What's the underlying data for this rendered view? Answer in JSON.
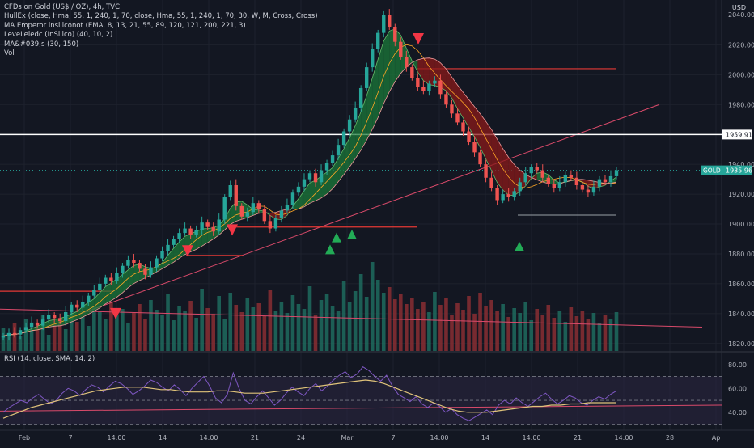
{
  "header": {
    "title": "CFDs on Gold (US$ / OZ), 4h, TVC",
    "indicators": [
      "HullEx (close, Hma, 55, 1, 240, 1, 70, close, Hma, 55, 1, 240, 1, 70, 30, W, M, Cross, Cross)",
      "MA Emperor insiliconot (EMA, 8, 13, 21, 55, 89, 120, 121, 200, 221, 3)",
      "LeveLeledc (InSilico) (40, 10, 2)",
      "MA&#039;s (30, 150)",
      "Vol"
    ],
    "currency": "USD"
  },
  "rsi_legend": "RSI (14, close, SMA, 14, 2)",
  "price_tags": {
    "level": "1959.91",
    "symbol": "GOLD",
    "last": "1935.96",
    "top_partial": "2040.00"
  },
  "colors": {
    "background": "#131722",
    "up": "#26a69a",
    "down": "#ef5350",
    "ribbon_green": "#1b7a3a",
    "ribbon_red": "#8b1a1a",
    "trendline": "#d94a6a",
    "level_line": "#ffffff",
    "rsi_line": "#7e57c2",
    "rsi_ma": "#e0c37a",
    "rsi_band": "#2a2440",
    "signal_down": "#f23645",
    "signal_up": "#22ab56"
  },
  "chart_data": [
    {
      "type": "candlestick",
      "y_axis_labels": [
        "2020.00",
        "2000.00",
        "1980.00",
        "1940.00",
        "1920.00",
        "1900.00",
        "1880.00",
        "1860.00",
        "1840.00",
        "1820.00"
      ],
      "x_axis_labels": [
        "Feb",
        "7",
        "14:00",
        "14",
        "14:00",
        "21",
        "24",
        "Mar",
        "7",
        "14:00",
        "14",
        "14:00",
        "21",
        "14:00",
        "28",
        "Ap"
      ],
      "ylim": [
        1815,
        2050
      ],
      "horizontal_levels": [
        1959.91,
        2002,
        1936
      ],
      "last_price": 1935.96,
      "close_series": [
        1825,
        1827,
        1826,
        1829,
        1831,
        1834,
        1832,
        1836,
        1839,
        1837,
        1835,
        1841,
        1846,
        1844,
        1848,
        1852,
        1856,
        1860,
        1864,
        1862,
        1867,
        1872,
        1876,
        1874,
        1870,
        1866,
        1871,
        1877,
        1882,
        1886,
        1890,
        1894,
        1897,
        1893,
        1896,
        1901,
        1898,
        1895,
        1903,
        1918,
        1926,
        1912,
        1905,
        1908,
        1914,
        1910,
        1902,
        1897,
        1904,
        1909,
        1913,
        1921,
        1925,
        1930,
        1934,
        1928,
        1936,
        1941,
        1946,
        1953,
        1962,
        1970,
        1978,
        1991,
        2005,
        2017,
        2028,
        2040,
        2032,
        2022,
        2012,
        2005,
        1998,
        1992,
        1989,
        1994,
        1996,
        1987,
        1980,
        1974,
        1968,
        1962,
        1955,
        1948,
        1940,
        1931,
        1924,
        1916,
        1920,
        1918,
        1922,
        1928,
        1934,
        1938,
        1936,
        1931,
        1927,
        1924,
        1928,
        1933,
        1931,
        1926,
        1923,
        1921,
        1925,
        1930,
        1928,
        1932,
        1936
      ],
      "signals": [
        {
          "kind": "sell",
          "value": 1840
        },
        {
          "kind": "sell",
          "value": 1882
        },
        {
          "kind": "sell",
          "value": 1896
        },
        {
          "kind": "sell",
          "value": 2024
        },
        {
          "kind": "buy",
          "value": 1883
        },
        {
          "kind": "buy",
          "value": 1891
        },
        {
          "kind": "buy",
          "value": 1893
        },
        {
          "kind": "buy",
          "value": 1885
        }
      ],
      "volume_series": [
        28,
        22,
        35,
        18,
        40,
        25,
        30,
        45,
        20,
        33,
        38,
        27,
        50,
        36,
        42,
        31,
        55,
        48,
        39,
        61,
        44,
        52,
        35,
        47,
        58,
        40,
        63,
        51,
        45,
        70,
        38,
        56,
        49,
        62,
        41,
        77,
        53,
        46,
        68,
        39,
        72,
        57,
        48,
        66,
        54,
        59,
        43,
        75,
        50,
        61,
        47,
        69,
        58,
        52,
        80,
        45,
        63,
        71,
        55,
        49,
        86,
        60,
        74,
        95,
        67,
        110,
        88,
        72,
        79,
        64,
        70,
        58,
        66,
        52,
        61,
        48,
        73,
        57,
        65,
        44,
        59,
        51,
        68,
        46,
        72,
        55,
        63,
        49,
        58,
        42,
        53,
        47,
        60,
        38,
        52,
        45,
        57,
        41,
        49,
        36,
        54,
        43,
        50,
        39,
        47,
        35,
        44,
        40,
        48
      ]
    },
    {
      "type": "line",
      "y_axis_labels": [
        "80.00",
        "60.00",
        "40.00"
      ],
      "ylim": [
        25,
        90
      ],
      "band": [
        30,
        70
      ],
      "rsi": [
        40,
        44,
        47,
        50,
        48,
        52,
        55,
        51,
        47,
        50,
        56,
        60,
        58,
        54,
        59,
        63,
        61,
        57,
        62,
        66,
        64,
        60,
        55,
        58,
        62,
        67,
        65,
        61,
        58,
        63,
        59,
        54,
        60,
        65,
        70,
        62,
        52,
        48,
        55,
        73,
        60,
        50,
        47,
        53,
        58,
        52,
        46,
        50,
        56,
        61,
        57,
        54,
        60,
        64,
        58,
        62,
        67,
        71,
        74,
        69,
        72,
        78,
        75,
        70,
        66,
        71,
        62,
        55,
        52,
        49,
        53,
        47,
        44,
        48,
        45,
        40,
        43,
        38,
        35,
        33,
        36,
        39,
        42,
        38,
        46,
        50,
        47,
        52,
        48,
        45,
        49,
        53,
        56,
        51,
        47,
        50,
        54,
        52,
        48,
        46,
        50,
        53,
        51,
        55,
        58
      ],
      "rsi_ma": [
        35,
        38,
        41,
        44,
        46,
        48,
        50,
        52,
        54,
        56,
        58,
        59,
        60,
        61,
        61,
        61,
        60,
        59,
        59,
        58,
        57,
        57,
        57,
        58,
        58,
        57,
        56,
        56,
        56,
        57,
        58,
        59,
        60,
        61,
        62,
        63,
        64,
        65,
        66,
        67,
        66,
        64,
        61,
        58,
        55,
        52,
        49,
        46,
        43,
        41,
        40,
        40,
        40,
        41,
        42,
        43,
        44,
        45,
        45,
        46,
        46,
        47,
        47,
        48,
        48,
        48,
        48
      ]
    }
  ]
}
